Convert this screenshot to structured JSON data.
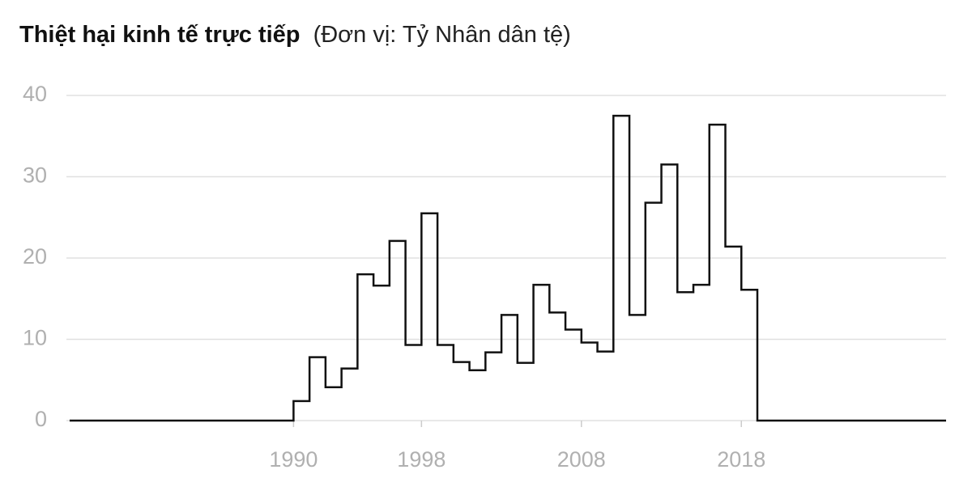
{
  "chart_data": {
    "type": "line",
    "step": "post",
    "title": "Thiệt hại kinh tế trực tiếp",
    "subtitle": "(Đơn vị: Tỷ Nhân dân tệ)",
    "x": [
      1976,
      1990,
      1991,
      1992,
      1993,
      1994,
      1995,
      1996,
      1997,
      1998,
      1999,
      2000,
      2001,
      2002,
      2003,
      2004,
      2005,
      2006,
      2007,
      2008,
      2009,
      2010,
      2011,
      2012,
      2013,
      2014,
      2015,
      2016,
      2017,
      2018,
      2019
    ],
    "values": [
      0,
      2.4,
      7.8,
      4.1,
      6.4,
      18.0,
      16.6,
      22.1,
      9.3,
      25.5,
      9.3,
      7.2,
      6.2,
      8.4,
      13.0,
      7.1,
      16.7,
      13.3,
      11.2,
      9.6,
      8.5,
      37.5,
      13.0,
      26.8,
      31.5,
      15.8,
      16.7,
      36.4,
      21.4,
      16.1,
      0
    ],
    "color": "#111111",
    "xlim": [
      1975.8,
      2030.8
    ],
    "xticks": [
      1990,
      1998,
      2008,
      2018
    ],
    "ylim": [
      0,
      40
    ],
    "yticks": [
      0,
      10,
      20,
      30,
      40
    ],
    "grid": true
  }
}
